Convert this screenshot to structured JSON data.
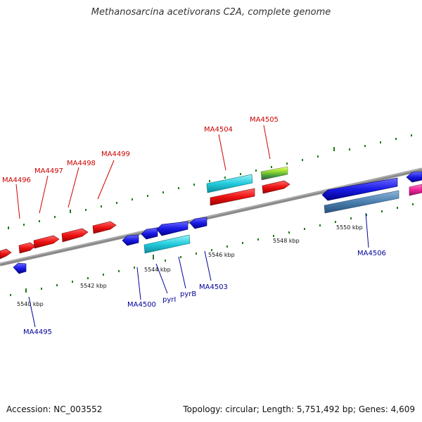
{
  "title": "Methanosarcina acetivorans C2A, complete genome",
  "footer": {
    "accession": "Accession: NC_003552",
    "summary": "Topology: circular; Length: 5,751,492 bp; Genes: 4,609"
  },
  "colors": {
    "forward_label": "#cc0000",
    "reverse_label": "#000099",
    "backbone": "#8a8a8a",
    "tick_mark": "#1e7d1e",
    "red_gene": "#ee1111",
    "blue_gene": "#1a1ae6",
    "cyan_gene": "#22ccdd",
    "steel_gene": "#4a7fb0",
    "pink_gene": "#ee2299",
    "green_gene": "#88cc33"
  },
  "ticks": {
    "t5540": "5540 kbp",
    "t5542": "5542 kbp",
    "t5544": "5544 kbp",
    "t5546": "5546 kbp",
    "t5548": "5548 kbp",
    "t5550": "5550 kbp"
  },
  "genes": {
    "ma4495": "MA4495",
    "ma4496": "MA4496",
    "ma4497": "MA4497",
    "ma4498": "MA4498",
    "ma4499": "MA4499",
    "ma4500": "MA4500",
    "pyri": "pyrI",
    "pyrb": "pyrB",
    "ma4503": "MA4503",
    "ma4504": "MA4504",
    "ma4505": "MA4505",
    "ma4506": "MA4506"
  }
}
